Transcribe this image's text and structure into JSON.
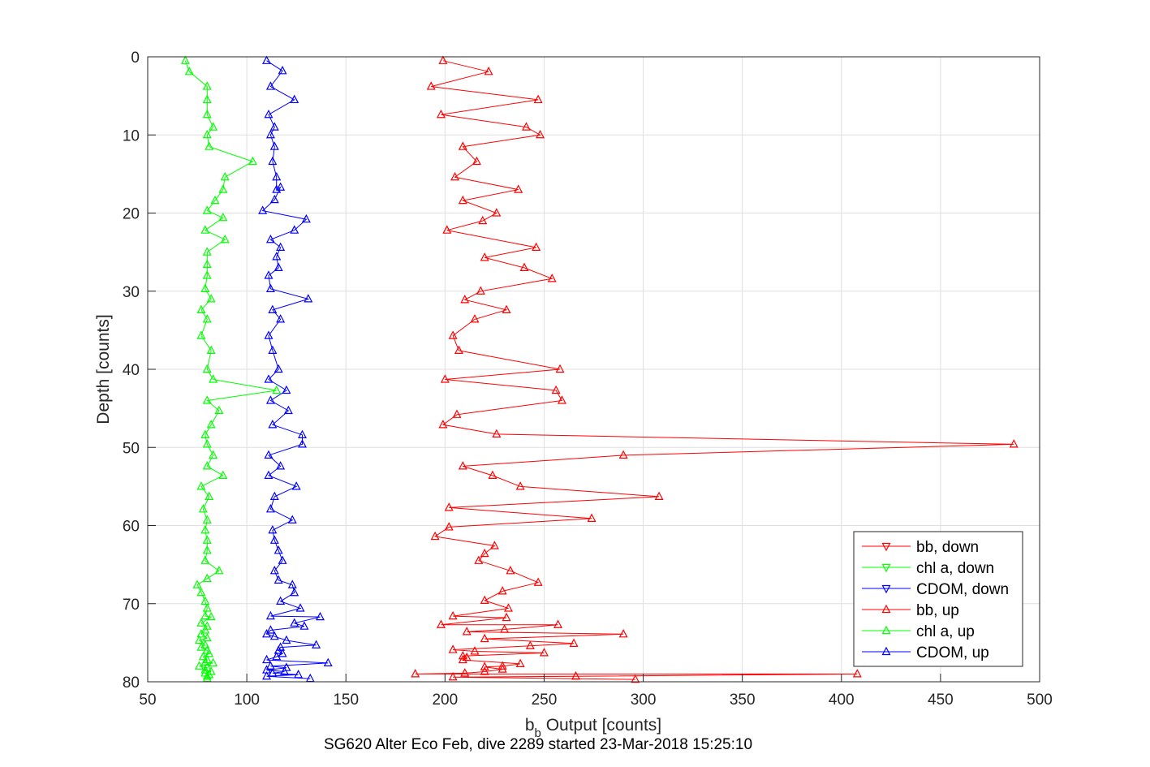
{
  "chart_data": {
    "type": "line",
    "xlabel_main": "b",
    "xlabel_sub": "b",
    "xlabel_rest": " Output [counts]",
    "ylabel": "Depth [counts]",
    "caption": "SG620 Alter Eco Feb, dive 2289 started 23-Mar-2018 15:25:10",
    "xlim": [
      50,
      500
    ],
    "ylim": [
      0,
      80
    ],
    "y_reversed": true,
    "grid": true,
    "legend_position": "bottom-right",
    "xticks": [
      "50",
      "100",
      "150",
      "200",
      "250",
      "300",
      "350",
      "400",
      "450",
      "500"
    ],
    "yticks": [
      "0",
      "10",
      "20",
      "30",
      "40",
      "50",
      "60",
      "70",
      "80"
    ],
    "series": [
      {
        "name": "bb, down",
        "color": "#ff0000",
        "marker": "triangle-down",
        "points": []
      },
      {
        "name": "chl a, down",
        "color": "#00ff00",
        "marker": "triangle-down",
        "points": []
      },
      {
        "name": "CDOM, down",
        "color": "#0000ff",
        "marker": "triangle-down",
        "points": []
      },
      {
        "name": "bb, up",
        "color": "#ff0000",
        "marker": "triangle-up",
        "points": [
          [
            199,
            0.5
          ],
          [
            222,
            1.9
          ],
          [
            193,
            3.8
          ],
          [
            247,
            5.5
          ],
          [
            198,
            7.4
          ],
          [
            241,
            9.0
          ],
          [
            248,
            10.0
          ],
          [
            209,
            11.5
          ],
          [
            216,
            13.4
          ],
          [
            205,
            15.4
          ],
          [
            237,
            17.0
          ],
          [
            209,
            18.4
          ],
          [
            226,
            20.0
          ],
          [
            219,
            21.0
          ],
          [
            201,
            22.2
          ],
          [
            246,
            24.4
          ],
          [
            220,
            25.7
          ],
          [
            240,
            27.0
          ],
          [
            254,
            28.4
          ],
          [
            218,
            30.0
          ],
          [
            210,
            31.1
          ],
          [
            231,
            32.4
          ],
          [
            215,
            33.6
          ],
          [
            204,
            35.7
          ],
          [
            207,
            37.6
          ],
          [
            258,
            40.0
          ],
          [
            200,
            41.3
          ],
          [
            256,
            42.7
          ],
          [
            259,
            44.0
          ],
          [
            206,
            45.8
          ],
          [
            199,
            47.1
          ],
          [
            226,
            48.3
          ],
          [
            487,
            49.6
          ],
          [
            290,
            51.0
          ],
          [
            209,
            52.4
          ],
          [
            224,
            53.6
          ],
          [
            238,
            55.0
          ],
          [
            308,
            56.3
          ],
          [
            202,
            57.7
          ],
          [
            274,
            59.1
          ],
          [
            202,
            60.2
          ],
          [
            195,
            61.4
          ],
          [
            225,
            62.6
          ],
          [
            220,
            63.6
          ],
          [
            217,
            64.5
          ],
          [
            233,
            65.8
          ],
          [
            247,
            67.3
          ],
          [
            229,
            68.4
          ],
          [
            220,
            69.6
          ],
          [
            232,
            70.6
          ],
          [
            204,
            71.6
          ],
          [
            231,
            71.8
          ],
          [
            198,
            72.7
          ],
          [
            257,
            72.7
          ],
          [
            230,
            73.3
          ],
          [
            211,
            73.6
          ],
          [
            290,
            73.9
          ],
          [
            220,
            74.5
          ],
          [
            265,
            75.1
          ],
          [
            243,
            75.4
          ],
          [
            204,
            75.9
          ],
          [
            215,
            76.1
          ],
          [
            250,
            76.3
          ],
          [
            209,
            76.7
          ],
          [
            211,
            76.9
          ],
          [
            209,
            77.2
          ],
          [
            238,
            77.7
          ],
          [
            229,
            78.0
          ],
          [
            220,
            78.1
          ],
          [
            229,
            78.4
          ],
          [
            220,
            78.7
          ],
          [
            210,
            78.9
          ],
          [
            185,
            79.0
          ],
          [
            408,
            79.0
          ],
          [
            266,
            79.3
          ],
          [
            204,
            79.4
          ],
          [
            296,
            79.7
          ]
        ]
      },
      {
        "name": "chl a, up",
        "color": "#00ff00",
        "marker": "triangle-up",
        "points": [
          [
            69,
            0.5
          ],
          [
            71,
            1.9
          ],
          [
            80,
            3.8
          ],
          [
            80,
            5.5
          ],
          [
            80,
            7.4
          ],
          [
            83,
            9.0
          ],
          [
            80,
            10.0
          ],
          [
            81,
            11.5
          ],
          [
            103,
            13.4
          ],
          [
            89,
            15.4
          ],
          [
            88,
            17.0
          ],
          [
            84,
            18.4
          ],
          [
            80,
            19.7
          ],
          [
            88,
            20.6
          ],
          [
            79,
            22.2
          ],
          [
            89,
            23.4
          ],
          [
            80,
            25.0
          ],
          [
            80,
            26.6
          ],
          [
            80,
            28.0
          ],
          [
            79,
            29.7
          ],
          [
            82,
            31.0
          ],
          [
            77,
            32.4
          ],
          [
            80,
            33.6
          ],
          [
            77,
            35.7
          ],
          [
            82,
            37.6
          ],
          [
            80,
            40.0
          ],
          [
            83,
            41.3
          ],
          [
            115,
            42.7
          ],
          [
            80,
            44.0
          ],
          [
            86,
            45.3
          ],
          [
            82,
            47.1
          ],
          [
            79,
            48.4
          ],
          [
            80,
            49.6
          ],
          [
            83,
            51.0
          ],
          [
            80,
            52.4
          ],
          [
            88,
            53.6
          ],
          [
            77,
            55.0
          ],
          [
            81,
            56.3
          ],
          [
            78,
            57.9
          ],
          [
            80,
            59.3
          ],
          [
            79,
            60.6
          ],
          [
            80,
            61.9
          ],
          [
            80,
            63.2
          ],
          [
            79,
            64.5
          ],
          [
            86,
            65.8
          ],
          [
            80,
            66.8
          ],
          [
            75,
            67.6
          ],
          [
            77,
            68.6
          ],
          [
            79,
            69.7
          ],
          [
            80,
            70.6
          ],
          [
            79,
            71.6
          ],
          [
            82,
            71.7
          ],
          [
            77,
            72.5
          ],
          [
            80,
            72.9
          ],
          [
            79,
            73.4
          ],
          [
            77,
            73.9
          ],
          [
            80,
            74.4
          ],
          [
            76,
            74.7
          ],
          [
            79,
            75.3
          ],
          [
            77,
            75.6
          ],
          [
            80,
            76.0
          ],
          [
            81,
            76.4
          ],
          [
            78,
            76.8
          ],
          [
            80,
            77.2
          ],
          [
            79,
            77.5
          ],
          [
            83,
            77.6
          ],
          [
            76,
            78.0
          ],
          [
            80,
            78.2
          ],
          [
            79,
            78.5
          ],
          [
            82,
            78.7
          ],
          [
            79,
            78.9
          ],
          [
            81,
            79.1
          ],
          [
            80,
            79.3
          ],
          [
            80,
            79.6
          ]
        ]
      },
      {
        "name": "CDOM, up",
        "color": "#0000ff",
        "marker": "triangle-up",
        "points": [
          [
            110,
            0.5
          ],
          [
            118,
            1.8
          ],
          [
            112,
            3.8
          ],
          [
            124,
            5.5
          ],
          [
            111,
            7.4
          ],
          [
            114,
            9.0
          ],
          [
            112,
            10.0
          ],
          [
            114,
            11.5
          ],
          [
            113,
            13.4
          ],
          [
            115,
            15.4
          ],
          [
            115,
            17.0
          ],
          [
            117,
            16.7
          ],
          [
            114,
            18.3
          ],
          [
            108,
            19.7
          ],
          [
            130,
            20.8
          ],
          [
            124,
            22.2
          ],
          [
            112,
            23.4
          ],
          [
            117,
            24.4
          ],
          [
            115,
            25.6
          ],
          [
            116,
            27.0
          ],
          [
            111,
            28.0
          ],
          [
            112,
            29.7
          ],
          [
            131,
            31.0
          ],
          [
            113,
            32.4
          ],
          [
            117,
            33.6
          ],
          [
            111,
            35.7
          ],
          [
            113,
            37.6
          ],
          [
            116,
            40.0
          ],
          [
            111,
            41.3
          ],
          [
            120,
            42.7
          ],
          [
            112,
            44.0
          ],
          [
            121,
            45.3
          ],
          [
            113,
            47.1
          ],
          [
            128,
            48.4
          ],
          [
            128,
            49.6
          ],
          [
            111,
            51.0
          ],
          [
            117,
            52.4
          ],
          [
            111,
            53.6
          ],
          [
            125,
            55.0
          ],
          [
            114,
            56.3
          ],
          [
            112,
            57.9
          ],
          [
            123,
            59.3
          ],
          [
            113,
            60.6
          ],
          [
            114,
            61.9
          ],
          [
            116,
            63.2
          ],
          [
            118,
            64.5
          ],
          [
            114,
            65.8
          ],
          [
            116,
            67.0
          ],
          [
            123,
            67.6
          ],
          [
            124,
            68.6
          ],
          [
            117,
            69.7
          ],
          [
            127,
            70.6
          ],
          [
            112,
            71.6
          ],
          [
            137,
            71.7
          ],
          [
            124,
            72.5
          ],
          [
            129,
            72.9
          ],
          [
            112,
            73.4
          ],
          [
            110,
            73.9
          ],
          [
            114,
            74.2
          ],
          [
            120,
            74.7
          ],
          [
            135,
            75.3
          ],
          [
            117,
            75.6
          ],
          [
            116,
            76.0
          ],
          [
            118,
            76.4
          ],
          [
            115,
            76.8
          ],
          [
            110,
            77.2
          ],
          [
            141,
            77.6
          ],
          [
            112,
            78.0
          ],
          [
            120,
            78.2
          ],
          [
            110,
            78.5
          ],
          [
            119,
            78.7
          ],
          [
            113,
            78.9
          ],
          [
            126,
            79.1
          ],
          [
            110,
            79.3
          ],
          [
            132,
            79.6
          ]
        ]
      }
    ]
  }
}
